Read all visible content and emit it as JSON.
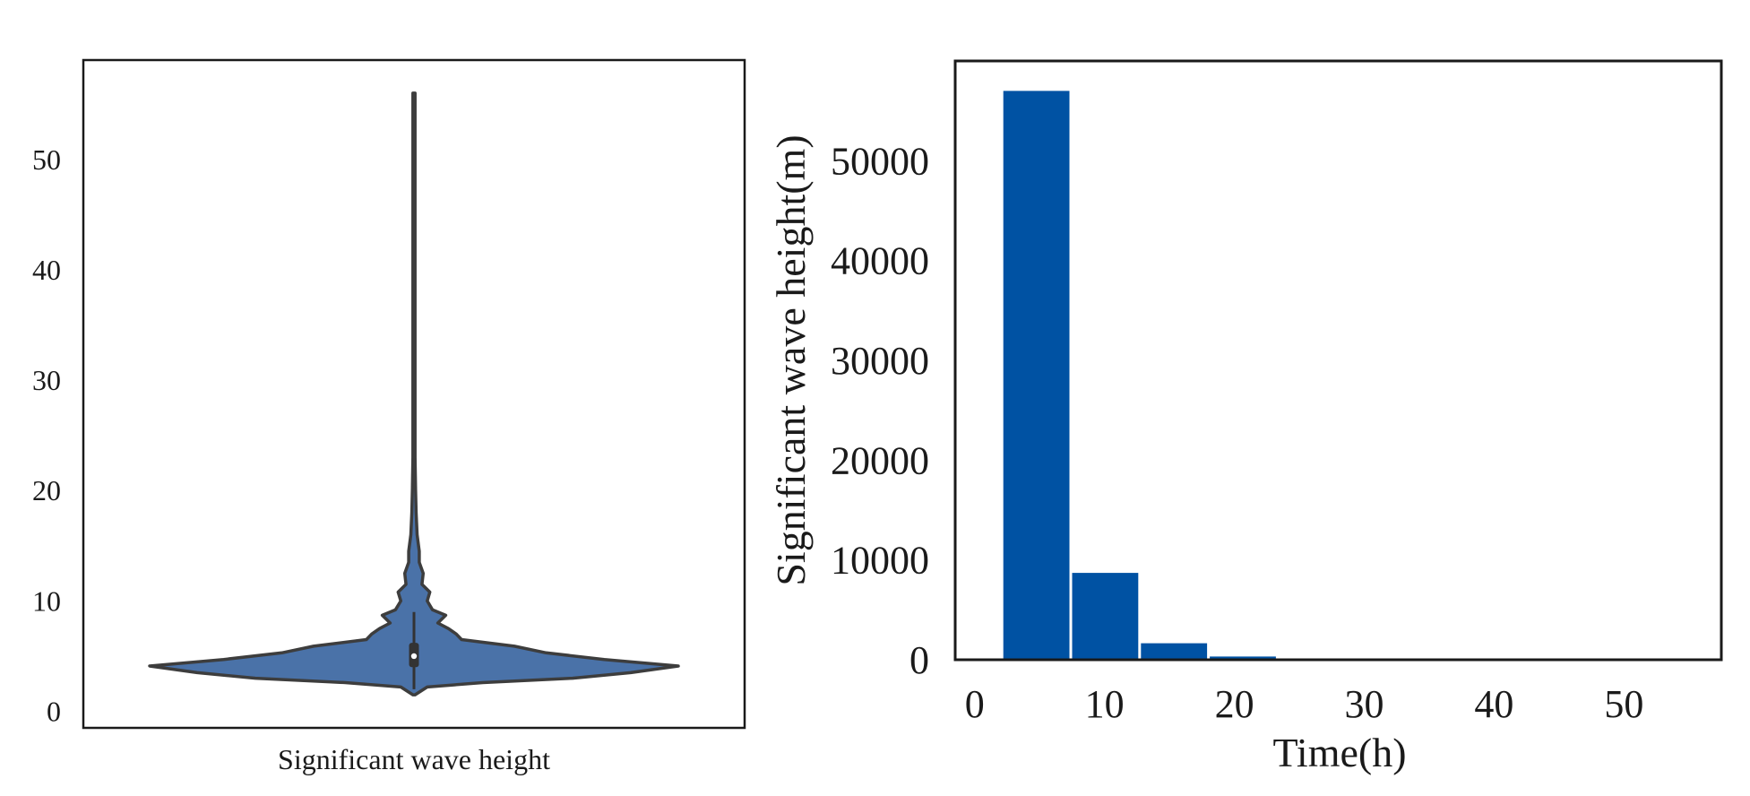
{
  "chart_data": [
    {
      "type": "violin",
      "title": "",
      "xlabel": "Significant wave height",
      "ylabel": "",
      "ylim": [
        -1.5,
        59
      ],
      "yticks": [
        "0",
        "10",
        "20",
        "30",
        "40",
        "50"
      ],
      "distribution": {
        "min": 1.5,
        "max": 56,
        "q1": 4.0,
        "median": 5.0,
        "q3": 6.2,
        "whisker_low": 2.0,
        "whisker_high": 9.0,
        "density_profile": [
          [
            1.5,
            0.0
          ],
          [
            2.2,
            0.05
          ],
          [
            2.6,
            0.26
          ],
          [
            3.0,
            0.6
          ],
          [
            3.5,
            0.82
          ],
          [
            4.1,
            1.0
          ],
          [
            4.7,
            0.72
          ],
          [
            5.3,
            0.5
          ],
          [
            5.9,
            0.38
          ],
          [
            6.5,
            0.18
          ],
          [
            7.0,
            0.16
          ],
          [
            7.5,
            0.13
          ],
          [
            8.0,
            0.09
          ],
          [
            8.7,
            0.12
          ],
          [
            9.2,
            0.07
          ],
          [
            10.0,
            0.05
          ],
          [
            10.8,
            0.06
          ],
          [
            11.5,
            0.03
          ],
          [
            12.5,
            0.035
          ],
          [
            13.5,
            0.02
          ],
          [
            14.5,
            0.02
          ],
          [
            16.0,
            0.012
          ],
          [
            18.0,
            0.008
          ],
          [
            20.0,
            0.006
          ],
          [
            23.0,
            0.004
          ],
          [
            27.0,
            0.003
          ],
          [
            35.0,
            0.002
          ],
          [
            45.0,
            0.0015
          ],
          [
            56.0,
            0.001
          ]
        ]
      },
      "colors": {
        "fill": "#4a72a8",
        "stroke": "#3d3d3d",
        "box": "#333333",
        "median_dot": "#ffffff"
      }
    },
    {
      "type": "bar",
      "title": "",
      "xlabel": "Time(h)",
      "ylabel": "Significant wave height(m)",
      "xlim": [
        -1.5,
        57.5
      ],
      "ylim": [
        0,
        60000
      ],
      "xticks": [
        "0",
        "10",
        "20",
        "30",
        "40",
        "50"
      ],
      "yticks": [
        "0",
        "10000",
        "20000",
        "30000",
        "40000",
        "50000"
      ],
      "bins": [
        {
          "start": 2.1,
          "end": 7.4,
          "value": 57000
        },
        {
          "start": 7.4,
          "end": 12.7,
          "value": 8700
        },
        {
          "start": 12.7,
          "end": 18.0,
          "value": 1650
        },
        {
          "start": 18.0,
          "end": 23.3,
          "value": 320
        },
        {
          "start": 23.3,
          "end": 28.6,
          "value": 70
        },
        {
          "start": 28.6,
          "end": 33.9,
          "value": 20
        },
        {
          "start": 33.9,
          "end": 39.2,
          "value": 8
        },
        {
          "start": 39.2,
          "end": 44.5,
          "value": 4
        },
        {
          "start": 44.5,
          "end": 49.8,
          "value": 2
        },
        {
          "start": 49.8,
          "end": 55.1,
          "value": 1
        }
      ],
      "colors": {
        "bar": "#0052a3"
      }
    }
  ]
}
